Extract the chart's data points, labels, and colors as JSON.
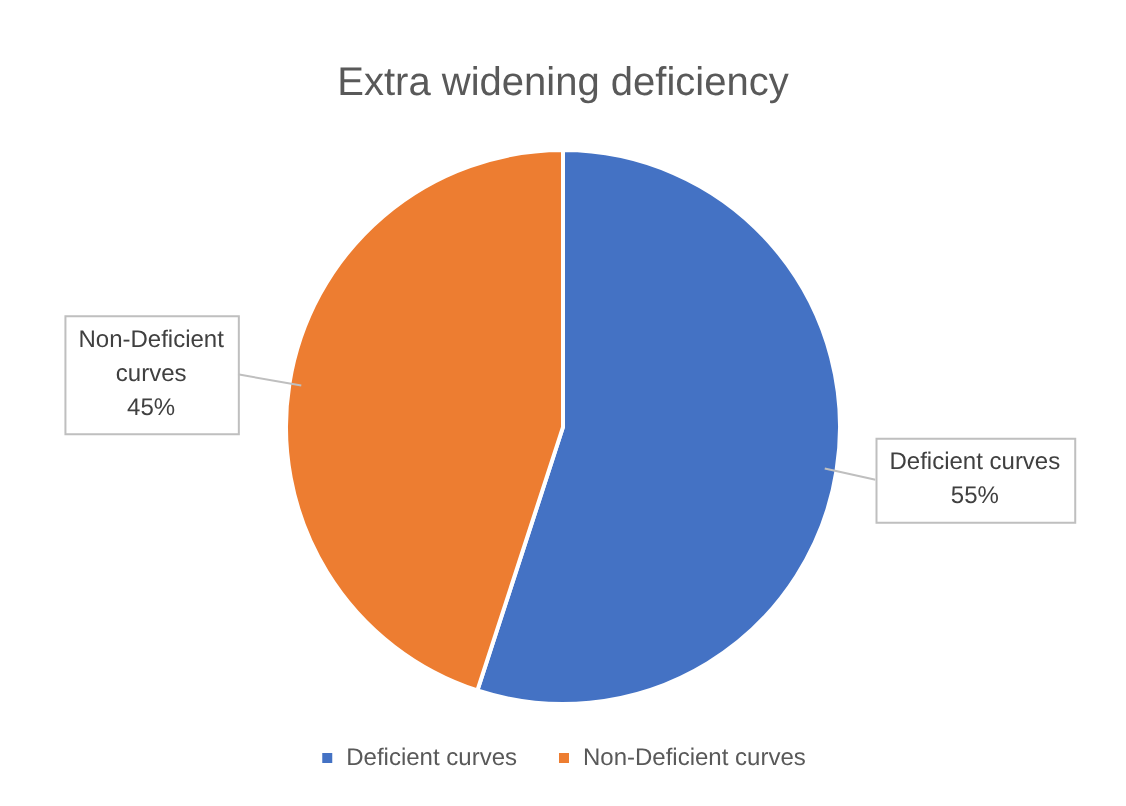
{
  "chart_data": {
    "type": "pie",
    "title": "Extra widening deficiency",
    "categories": [
      "Deficient curves",
      "Non-Deficient curves"
    ],
    "values": [
      55,
      45
    ],
    "colors": [
      "#4472c4",
      "#ed7d31"
    ],
    "value_labels": [
      "55%",
      "45%"
    ],
    "legend": "bottom"
  }
}
